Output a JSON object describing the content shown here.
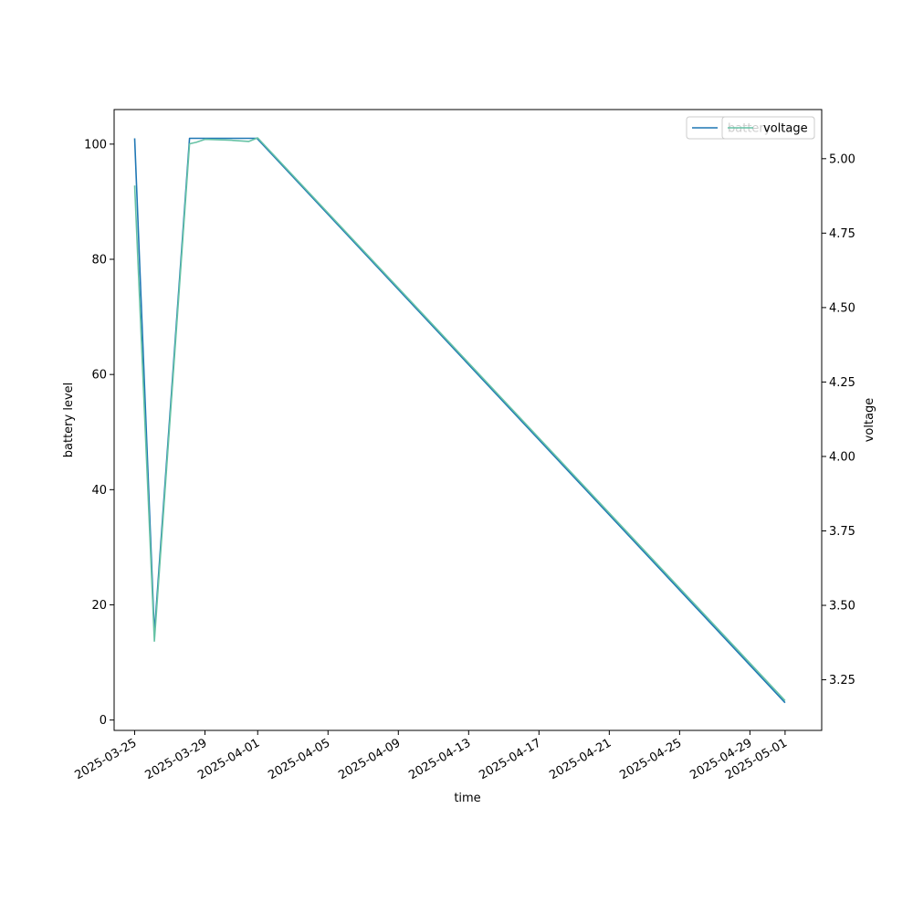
{
  "chart_data": {
    "type": "line",
    "xlabel": "time",
    "ylabel_left": "battery level",
    "ylabel_right": "voltage",
    "x_tick_labels": [
      "2025-03-25",
      "2025-03-29",
      "2025-04-01",
      "2025-04-05",
      "2025-04-09",
      "2025-04-13",
      "2025-04-17",
      "2025-04-21",
      "2025-04-25",
      "2025-04-29",
      "2025-05-01"
    ],
    "x_tick_dates": [
      "2025-03-25",
      "2025-03-29",
      "2025-04-01",
      "2025-04-05",
      "2025-04-09",
      "2025-04-13",
      "2025-04-17",
      "2025-04-21",
      "2025-04-25",
      "2025-04-29",
      "2025-05-01"
    ],
    "x_range": [
      "2025-03-23T20:00",
      "2025-05-03T02:00"
    ],
    "y_left_ticks": [
      0,
      20,
      40,
      60,
      80,
      100
    ],
    "y_left_range": [
      -1.8,
      106
    ],
    "y_right_ticks": [
      3.25,
      3.5,
      3.75,
      4.0,
      4.25,
      4.5,
      4.75,
      5.0
    ],
    "y_right_ticks_text": [
      "3.25",
      "3.50",
      "3.75",
      "4.00",
      "4.25",
      "4.50",
      "4.75",
      "5.00"
    ],
    "y_right_range": [
      3.08,
      5.165
    ],
    "legend_placement": "upper-right",
    "grid": false,
    "series": [
      {
        "name": "battery",
        "axis": "left",
        "color": "#1f77b4",
        "points": [
          [
            "2025-03-25T00:00",
            101
          ],
          [
            "2025-03-26T03:00",
            15
          ],
          [
            "2025-03-28T03:00",
            101
          ],
          [
            "2025-03-31T23:00",
            101
          ],
          [
            "2025-05-01T00:00",
            3
          ]
        ]
      },
      {
        "name": "voltage",
        "axis": "right",
        "color": "#66c2a5",
        "points": [
          [
            "2025-03-25T00:00",
            4.91
          ],
          [
            "2025-03-26T03:00",
            3.38
          ],
          [
            "2025-03-28T03:00",
            5.05
          ],
          [
            "2025-03-28T12:00",
            5.055
          ],
          [
            "2025-03-29T00:00",
            5.065
          ],
          [
            "2025-03-30T12:00",
            5.062
          ],
          [
            "2025-03-31T12:00",
            5.058
          ],
          [
            "2025-04-01T00:00",
            5.07
          ],
          [
            "2025-05-01T00:00",
            3.18
          ]
        ]
      }
    ],
    "legend_entries": [
      "battery",
      "voltage"
    ]
  }
}
